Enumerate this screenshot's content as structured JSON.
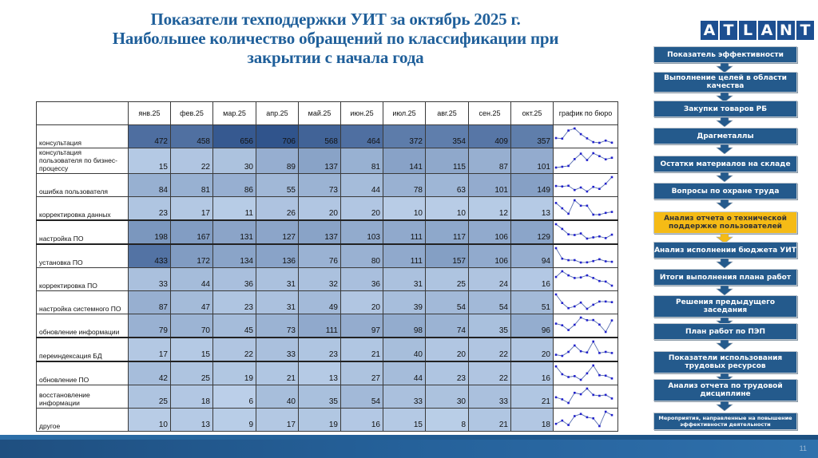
{
  "title": {
    "line1": "Показатели техподдержки  УИТ за октябрь 2025 г.",
    "line2": "Наибольшее количество обращений по классификации при",
    "line3": "закрытии с начала года"
  },
  "logo": {
    "letters": [
      "A",
      "T",
      "L",
      "A",
      "N",
      "T"
    ],
    "color": "#1d4f91"
  },
  "table": {
    "columns": [
      "янв.25",
      "фев.25",
      "мар.25",
      "апр.25",
      "май.25",
      "июн.25",
      "июл.25",
      "авг.25",
      "сен.25",
      "окт.25"
    ],
    "sparkline_header": "график по бюро",
    "rows": [
      {
        "label": "консультация",
        "values": [
          472,
          458,
          656,
          706,
          568,
          464,
          372,
          354,
          409,
          357
        ]
      },
      {
        "label": "консультация пользователя по бизнес-процессу",
        "values": [
          15,
          22,
          30,
          89,
          137,
          81,
          141,
          115,
          87,
          101
        ]
      },
      {
        "label": "ошибка пользователя",
        "values": [
          84,
          81,
          86,
          55,
          73,
          44,
          78,
          63,
          101,
          149
        ]
      },
      {
        "label": "корректировка данных",
        "values": [
          23,
          17,
          11,
          26,
          20,
          20,
          10,
          10,
          12,
          13
        ]
      },
      {
        "label": "настройка ПО",
        "values": [
          198,
          167,
          131,
          127,
          137,
          103,
          111,
          117,
          106,
          129
        ]
      },
      {
        "label": "установка ПО",
        "values": [
          433,
          172,
          134,
          136,
          76,
          80,
          111,
          157,
          106,
          94
        ]
      },
      {
        "label": "корректировка ПО",
        "values": [
          33,
          44,
          36,
          31,
          32,
          36,
          31,
          25,
          24,
          16
        ]
      },
      {
        "label": "настройка системного ПО",
        "values": [
          87,
          47,
          23,
          31,
          49,
          20,
          39,
          54,
          54,
          51
        ]
      },
      {
        "label": "обновление информации",
        "values": [
          79,
          70,
          45,
          73,
          111,
          97,
          98,
          74,
          35,
          96
        ]
      },
      {
        "label": "переиндексация БД",
        "values": [
          17,
          15,
          22,
          33,
          23,
          21,
          40,
          20,
          22,
          20
        ]
      },
      {
        "label": "обновление ПО",
        "values": [
          42,
          25,
          19,
          21,
          13,
          27,
          44,
          23,
          22,
          16
        ]
      },
      {
        "label": "восстановление информации",
        "values": [
          25,
          18,
          6,
          40,
          35,
          54,
          33,
          30,
          33,
          21
        ]
      },
      {
        "label": "другое",
        "values": [
          10,
          13,
          9,
          17,
          19,
          16,
          15,
          8,
          21,
          18
        ]
      }
    ]
  },
  "chart_data": {
    "type": "table",
    "title": "Наибольшее количество обращений по классификации при закрытии с начала года",
    "categories": [
      "янв.25",
      "фев.25",
      "мар.25",
      "апр.25",
      "май.25",
      "июн.25",
      "июл.25",
      "авг.25",
      "сен.25",
      "окт.25"
    ],
    "series": [
      {
        "name": "консультация",
        "values": [
          472,
          458,
          656,
          706,
          568,
          464,
          372,
          354,
          409,
          357
        ]
      },
      {
        "name": "консультация пользователя по бизнес-процессу",
        "values": [
          15,
          22,
          30,
          89,
          137,
          81,
          141,
          115,
          87,
          101
        ]
      },
      {
        "name": "ошибка пользователя",
        "values": [
          84,
          81,
          86,
          55,
          73,
          44,
          78,
          63,
          101,
          149
        ]
      },
      {
        "name": "корректировка данных",
        "values": [
          23,
          17,
          11,
          26,
          20,
          20,
          10,
          10,
          12,
          13
        ]
      },
      {
        "name": "настройка ПО",
        "values": [
          198,
          167,
          131,
          127,
          137,
          103,
          111,
          117,
          106,
          129
        ]
      },
      {
        "name": "установка ПО",
        "values": [
          433,
          172,
          134,
          136,
          76,
          80,
          111,
          157,
          106,
          94
        ]
      },
      {
        "name": "корректировка ПО",
        "values": [
          33,
          44,
          36,
          31,
          32,
          36,
          31,
          25,
          24,
          16
        ]
      },
      {
        "name": "настройка системного ПО",
        "values": [
          87,
          47,
          23,
          31,
          49,
          20,
          39,
          54,
          54,
          51
        ]
      },
      {
        "name": "обновление информации",
        "values": [
          79,
          70,
          45,
          73,
          111,
          97,
          98,
          74,
          35,
          96
        ]
      },
      {
        "name": "переиндексация БД",
        "values": [
          17,
          15,
          22,
          33,
          23,
          21,
          40,
          20,
          22,
          20
        ]
      },
      {
        "name": "обновление ПО",
        "values": [
          42,
          25,
          19,
          21,
          13,
          27,
          44,
          23,
          22,
          16
        ]
      },
      {
        "name": "восстановление информации",
        "values": [
          25,
          18,
          6,
          40,
          35,
          54,
          33,
          30,
          33,
          21
        ]
      },
      {
        "name": "другое",
        "values": [
          10,
          13,
          9,
          17,
          19,
          16,
          15,
          8,
          21,
          18
        ]
      }
    ],
    "extra_column": "график по бюро (sparklines)"
  },
  "flow": {
    "steps": [
      {
        "label": "Показатель эффективности",
        "active": false
      },
      {
        "label": "Выполнение целей в области качества",
        "active": false
      },
      {
        "label": "Закупки товаров РБ",
        "active": false
      },
      {
        "label": "Драгметаллы",
        "active": false
      },
      {
        "label": "Остатки материалов на складе",
        "active": false
      },
      {
        "label": "Вопросы по охране труда",
        "active": false
      },
      {
        "label": "Анализ отчета о технической поддержке пользователей",
        "active": true
      },
      {
        "label": "Анализ исполнении бюджета УИТ",
        "active": false
      },
      {
        "label": "Итоги выполнения плана работ",
        "active": false
      },
      {
        "label": "Решения предыдущего заседания",
        "active": false
      },
      {
        "label": "План работ по ПЭП",
        "active": false
      },
      {
        "label": "Показатели использования трудовых ресурсов",
        "active": false
      },
      {
        "label": "Анализ отчета по трудовой дисциплине",
        "active": false
      },
      {
        "label": "Мероприятия, направленные на повышение эффективности деятельности",
        "active": false
      }
    ],
    "colors": {
      "step": "#245a8c",
      "active": "#f5bb16"
    }
  },
  "footer": {
    "page_number": "11",
    "color": "#25619a"
  }
}
